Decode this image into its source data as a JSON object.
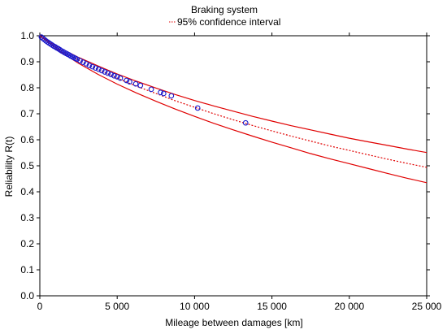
{
  "chart_data": {
    "type": "line",
    "title": "Braking system",
    "legend": {
      "label": "95% confidence interval",
      "placement": "top"
    },
    "xlabel": "Mileage between damages [km]",
    "ylabel": "Reliability R(t)",
    "xlim": [
      0,
      25000
    ],
    "ylim": [
      0,
      1
    ],
    "x_ticks": [
      0,
      5000,
      10000,
      15000,
      20000,
      25000
    ],
    "x_tick_labels": [
      "0",
      "5 000",
      "10 000",
      "15 000",
      "20 000",
      "25 000"
    ],
    "y_ticks": [
      0,
      0.1,
      0.2,
      0.3,
      0.4,
      0.5,
      0.6,
      0.7,
      0.8,
      0.9,
      1
    ],
    "y_tick_labels": [
      "0.0",
      "0.1",
      "0.2",
      "0.3",
      "0.4",
      "0.5",
      "0.6",
      "0.7",
      "0.8",
      "0.9",
      "1.0"
    ],
    "grid": false,
    "colors": {
      "curve": "#e00000",
      "points": "#1a1acc"
    },
    "series": [
      {
        "style": "dotted",
        "role": "fit",
        "x": [
          0,
          1250,
          2500,
          3750,
          5000,
          6250,
          7500,
          8750,
          10000,
          11250,
          12500,
          13750,
          15000,
          16250,
          17500,
          18750,
          20000,
          21250,
          22500,
          23750,
          25000
        ],
        "y": [
          1.0,
          0.949,
          0.907,
          0.87,
          0.837,
          0.806,
          0.778,
          0.75,
          0.725,
          0.7,
          0.677,
          0.655,
          0.634,
          0.614,
          0.595,
          0.576,
          0.559,
          0.542,
          0.525,
          0.509,
          0.494
        ]
      },
      {
        "style": "solid",
        "role": "upper",
        "x": [
          0,
          1250,
          2500,
          3750,
          5000,
          6250,
          7500,
          8750,
          10000,
          11250,
          12500,
          13750,
          15000,
          16250,
          17500,
          18750,
          20000,
          21250,
          22500,
          23750,
          25000
        ],
        "y": [
          1.0,
          0.955,
          0.917,
          0.884,
          0.853,
          0.825,
          0.799,
          0.774,
          0.751,
          0.73,
          0.71,
          0.69,
          0.672,
          0.654,
          0.638,
          0.622,
          0.606,
          0.592,
          0.578,
          0.564,
          0.551
        ]
      },
      {
        "style": "solid",
        "role": "lower",
        "x": [
          0,
          1250,
          2500,
          3750,
          5000,
          6250,
          7500,
          8750,
          10000,
          11250,
          12500,
          13750,
          15000,
          16250,
          17500,
          18750,
          20000,
          21250,
          22500,
          23750,
          25000
        ],
        "y": [
          1.0,
          0.942,
          0.894,
          0.852,
          0.814,
          0.78,
          0.748,
          0.718,
          0.69,
          0.663,
          0.638,
          0.614,
          0.591,
          0.569,
          0.547,
          0.527,
          0.508,
          0.489,
          0.47,
          0.452,
          0.435
        ]
      },
      {
        "style": "markers",
        "role": "observed",
        "x": [
          100,
          200,
          300,
          400,
          500,
          600,
          700,
          800,
          900,
          1000,
          1100,
          1200,
          1300,
          1400,
          1500,
          1600,
          1700,
          1800,
          1900,
          2000,
          2100,
          2200,
          2300,
          2400,
          2600,
          2800,
          3000,
          3200,
          3400,
          3600,
          3800,
          4000,
          4200,
          4400,
          4600,
          4800,
          5000,
          5200,
          5600,
          5800,
          6200,
          6500,
          7200,
          7800,
          8000,
          8500,
          10200,
          13300
        ],
        "y": [
          0.995,
          0.99,
          0.985,
          0.98,
          0.976,
          0.972,
          0.968,
          0.964,
          0.96,
          0.957,
          0.953,
          0.95,
          0.946,
          0.942,
          0.939,
          0.935,
          0.932,
          0.929,
          0.926,
          0.922,
          0.919,
          0.916,
          0.913,
          0.91,
          0.904,
          0.898,
          0.892,
          0.886,
          0.881,
          0.876,
          0.871,
          0.866,
          0.861,
          0.856,
          0.851,
          0.846,
          0.842,
          0.837,
          0.828,
          0.823,
          0.815,
          0.809,
          0.794,
          0.782,
          0.778,
          0.769,
          0.722,
          0.665
        ]
      }
    ]
  }
}
